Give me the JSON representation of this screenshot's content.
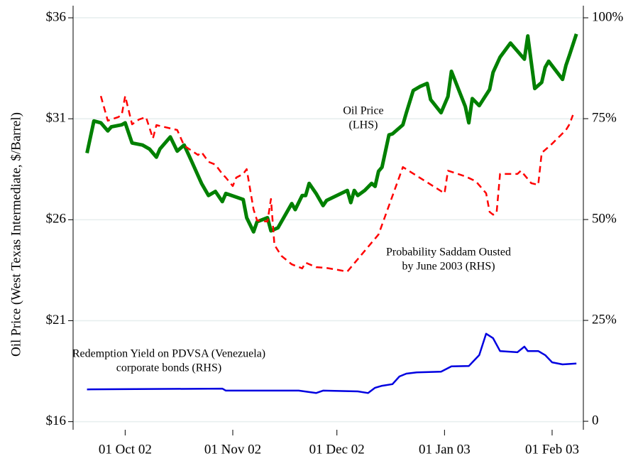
{
  "chart_data": {
    "type": "line",
    "y_axis_label": "Oil Price (West Texas Intermediate, $/Barrel)",
    "xlim": [
      "2002-09-16",
      "2003-02-10"
    ],
    "xticks": [
      {
        "value": "2002-10-01",
        "label": "01 Oct 02"
      },
      {
        "value": "2002-11-01",
        "label": "01 Nov 02"
      },
      {
        "value": "2002-12-01",
        "label": "01 Dec 02"
      },
      {
        "value": "2003-01-01",
        "label": "01 Jan 03"
      },
      {
        "value": "2003-02-01",
        "label": "01 Feb 03"
      }
    ],
    "ylim": [
      15.6,
      36.6
    ],
    "yticks": [
      {
        "value": 16,
        "label": "$16"
      },
      {
        "value": 21,
        "label": "$21"
      },
      {
        "value": 26,
        "label": "$26"
      },
      {
        "value": 31,
        "label": "$31"
      },
      {
        "value": 36,
        "label": "$36"
      }
    ],
    "y2lim": [
      -2.1,
      103
    ],
    "y2ticks": [
      0,
      {
        "value": 25,
        "label": "25%"
      },
      {
        "value": 50,
        "label": "50%"
      },
      {
        "value": 75,
        "label": "75%"
      },
      {
        "value": 100,
        "label": "100%"
      }
    ],
    "grid": true,
    "annotations": [
      {
        "lines": [
          "Oil Price",
          "(LHS)"
        ]
      },
      {
        "lines": [
          "Probability Saddam Ousted",
          "by June 2003 (RHS)"
        ]
      },
      {
        "lines": [
          "Redemption Yield on PDVSA (Venezuela)",
          "corporate bonds (RHS)"
        ]
      }
    ],
    "series": [
      {
        "color": "#008000",
        "width": 5,
        "dashed": false,
        "x": [
          "2002-09-20",
          "2002-09-22",
          "2002-09-24",
          "2002-09-26",
          "2002-09-27",
          "2002-09-30",
          "2002-10-01",
          "2002-10-03",
          "2002-10-06",
          "2002-10-08",
          "2002-10-10",
          "2002-10-11",
          "2002-10-14",
          "2002-10-16",
          "2002-10-18",
          "2002-10-20",
          "2002-10-23",
          "2002-10-25",
          "2002-10-27",
          "2002-10-29",
          "2002-10-30",
          "2002-11-04",
          "2002-11-05",
          "2002-11-07",
          "2002-11-08",
          "2002-11-11",
          "2002-11-12",
          "2002-11-14",
          "2002-11-18",
          "2002-11-19",
          "2002-11-21",
          "2002-11-22",
          "2002-11-23",
          "2002-11-25",
          "2002-11-27",
          "2002-11-28",
          "2002-12-04",
          "2002-12-05",
          "2002-12-06",
          "2002-12-07",
          "2002-12-09",
          "2002-12-11",
          "2002-12-12",
          "2002-12-13",
          "2002-12-14",
          "2002-12-16",
          "2002-12-17",
          "2002-12-20",
          "2002-12-21",
          "2002-12-23",
          "2002-12-25",
          "2002-12-27",
          "2002-12-28",
          "2002-12-31",
          "2003-01-02",
          "2003-01-03",
          "2003-01-07",
          "2003-01-08",
          "2003-01-09",
          "2003-01-11",
          "2003-01-14",
          "2003-01-15",
          "2003-01-17",
          "2003-01-20",
          "2003-01-24",
          "2003-01-25",
          "2003-01-27",
          "2003-01-29",
          "2003-01-30",
          "2003-01-31",
          "2003-02-04",
          "2003-02-05",
          "2003-02-06",
          "2003-02-08"
        ],
        "values": [
          29.3,
          30.89,
          30.8,
          30.4,
          30.6,
          30.7,
          30.8,
          29.8,
          29.7,
          29.5,
          29.1,
          29.5,
          30.1,
          29.4,
          29.7,
          28.95,
          27.8,
          27.2,
          27.4,
          26.9,
          27.3,
          27.0,
          26.1,
          25.4,
          25.9,
          26.1,
          25.45,
          25.6,
          26.8,
          26.5,
          27.2,
          27.2,
          27.8,
          27.3,
          26.7,
          26.95,
          27.45,
          26.85,
          27.45,
          27.2,
          27.45,
          27.8,
          27.65,
          28.4,
          28.6,
          30.2,
          30.25,
          30.7,
          31.3,
          32.4,
          32.6,
          32.75,
          31.95,
          31.3,
          32.1,
          33.35,
          31.6,
          30.8,
          32.0,
          31.65,
          32.45,
          33.3,
          34.05,
          34.75,
          33.95,
          35.1,
          32.5,
          32.8,
          33.55,
          33.85,
          32.95,
          33.65,
          34.15,
          35.2
        ]
      },
      {
        "color": "#ff0000",
        "width": 2.5,
        "dashed": true,
        "axis": "y2",
        "x": [
          "2002-09-24",
          "2002-09-26",
          "2002-09-29",
          "2002-09-30",
          "2002-10-01",
          "2002-10-03",
          "2002-10-05",
          "2002-10-07",
          "2002-10-09",
          "2002-10-10",
          "2002-10-16",
          "2002-10-18",
          "2002-10-22",
          "2002-10-23",
          "2002-10-25",
          "2002-10-27",
          "2002-10-29",
          "2002-10-30",
          "2002-11-01",
          "2002-11-02",
          "2002-11-04",
          "2002-11-05",
          "2002-11-07",
          "2002-11-08",
          "2002-11-11",
          "2002-11-12",
          "2002-11-13",
          "2002-11-15",
          "2002-11-18",
          "2002-11-21",
          "2002-11-22",
          "2002-11-25",
          "2002-11-28",
          "2002-12-04",
          "2002-12-13",
          "2002-12-20",
          "2003-01-01",
          "2003-01-02",
          "2003-01-07",
          "2003-01-10",
          "2003-01-13",
          "2003-01-14",
          "2003-01-15",
          "2003-01-16",
          "2003-01-17",
          "2003-01-22",
          "2003-01-23",
          "2003-01-26",
          "2003-01-28",
          "2003-01-29",
          "2003-02-01",
          "2003-02-05",
          "2003-02-06",
          "2003-02-07"
        ],
        "values": [
          80.6,
          74.5,
          75.4,
          75.9,
          80.6,
          73.6,
          74.8,
          75.4,
          70.1,
          73.4,
          72.2,
          68.3,
          66.0,
          66.7,
          64.3,
          63.6,
          61.3,
          60.4,
          58.3,
          60.4,
          61.3,
          62.5,
          52.5,
          49.8,
          49.5,
          55.1,
          43.7,
          41.0,
          38.9,
          37.9,
          39.3,
          38.2,
          38.0,
          37.1,
          46.3,
          63.0,
          56.5,
          62.1,
          60.7,
          59.5,
          56.5,
          51.9,
          51.2,
          51.6,
          61.3,
          61.3,
          62.1,
          59.0,
          58.6,
          66.5,
          68.8,
          72.2,
          73.6,
          75.9
        ]
      },
      {
        "color": "#0000e0",
        "width": 2.5,
        "dashed": false,
        "axis": "y2",
        "x": [
          "2002-09-20",
          "2002-10-29",
          "2002-10-30",
          "2002-11-20",
          "2002-11-25",
          "2002-11-27",
          "2002-12-07",
          "2002-12-10",
          "2002-12-12",
          "2002-12-14",
          "2002-12-17",
          "2002-12-19",
          "2002-12-21",
          "2002-12-24",
          "2002-12-31",
          "2003-01-03",
          "2003-01-08",
          "2003-01-10",
          "2003-01-11",
          "2003-01-13",
          "2003-01-15",
          "2003-01-17",
          "2003-01-22",
          "2003-01-24",
          "2003-01-25",
          "2003-01-28",
          "2003-01-30",
          "2003-02-01",
          "2003-02-04",
          "2003-02-08"
        ],
        "values": [
          7.9,
          8.1,
          7.6,
          7.6,
          7.0,
          7.6,
          7.4,
          7.0,
          8.3,
          8.8,
          9.2,
          11.1,
          11.8,
          12.1,
          12.3,
          13.6,
          13.7,
          15.5,
          16.4,
          21.7,
          20.6,
          17.4,
          17.1,
          18.5,
          17.4,
          17.4,
          16.4,
          14.6,
          14.1,
          14.3
        ]
      }
    ]
  }
}
